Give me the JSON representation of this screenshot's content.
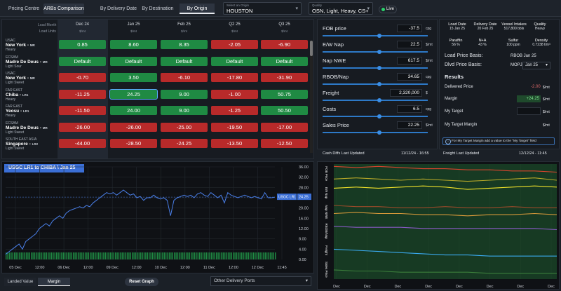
{
  "nav": {
    "tabs": [
      "Pricing Centre",
      "ARBs Comparison",
      "By Delivery Date",
      "By Destination",
      "By Origin"
    ]
  },
  "origin": {
    "label": "Select an Origin",
    "value": "HOUSTON"
  },
  "quality": {
    "label": "Quality",
    "value": "OSN, Light, Heavy, CS+"
  },
  "live": "Live",
  "grid": {
    "load_month_label": "Load Month",
    "load_units_label": "Load Units",
    "columns": [
      {
        "label": "Dec 24",
        "unit": "$/mt"
      },
      {
        "label": "Jan 25",
        "unit": "$/mt"
      },
      {
        "label": "Feb 25",
        "unit": "$/mt"
      },
      {
        "label": "Q2 25",
        "unit": "$/mt"
      },
      {
        "label": "Q3 25",
        "unit": "$/mt"
      }
    ],
    "rows": [
      {
        "region": "USAC",
        "name": "New York",
        "code": "MR",
        "grade": "Heavy",
        "values": [
          "0.85",
          "8.60",
          "8.35",
          "-2.05",
          "-6.90"
        ]
      },
      {
        "region": "ECSAM",
        "name": "Madre De Deus",
        "code": "MR",
        "grade": "Light Sour",
        "values": [
          "Default",
          "Default",
          "Default",
          "Default",
          "Default"
        ]
      },
      {
        "region": "USAC",
        "name": "New York",
        "code": "MR",
        "grade": "Light Sweet",
        "values": [
          "-0.70",
          "3.50",
          "-6.10",
          "-17.80",
          "-31.90"
        ]
      },
      {
        "region": "FAR EAST",
        "name": "Chiba",
        "code": "LR1",
        "grade": "Heavy",
        "values": [
          "-11.25",
          "24.25",
          "9.00",
          "-1.00",
          "50.75"
        ]
      },
      {
        "region": "FAR EAST",
        "name": "Yeosu",
        "code": "LR1",
        "grade": "Heavy",
        "values": [
          "-11.50",
          "24.00",
          "9.00",
          "-1.25",
          "50.50"
        ]
      },
      {
        "region": "ECSAM",
        "name": "Madre De Deus",
        "code": "MR",
        "grade": "Light Sweet",
        "values": [
          "-26.00",
          "-26.00",
          "-25.00",
          "-19.50",
          "-17.00"
        ]
      },
      {
        "region": "SOUTH EAST ASIA",
        "name": "Singapore",
        "code": "LR2",
        "grade": "Light Sweet",
        "values": [
          "-44.00",
          "-28.50",
          "-24.25",
          "-13.50",
          "-12.50"
        ]
      }
    ]
  },
  "sliders": [
    {
      "label": "FOB price",
      "value": "-37.5",
      "unit": "cpg"
    },
    {
      "label": "E/W Nap",
      "value": "22.5",
      "unit": "$/mt"
    },
    {
      "label": "Nap NWE",
      "value": "617.5",
      "unit": "$/mt"
    },
    {
      "label": "RBOB/Nap",
      "value": "34.65",
      "unit": "cpg"
    },
    {
      "label": "Freight",
      "value": "2,320,000",
      "unit": "$"
    },
    {
      "label": "Costs",
      "value": "6.5",
      "unit": "cpg"
    },
    {
      "label": "Sales Price",
      "value": "22.25",
      "unit": "$/mt"
    }
  ],
  "info": {
    "load_date_label": "Load Date",
    "load_date": "15 Jan 25",
    "delivery_date_label": "Delivery Date",
    "delivery_date": "20 Feb 25",
    "vessel_label": "Vessel Intakes",
    "vessel": "517,800 bbls",
    "quality_label": "Quality",
    "quality": "Heavy",
    "paraffin_label": "Paraffin",
    "paraffin": "56 %",
    "na_label": "N+A",
    "na": "43 %",
    "sulfur_label": "Sulfur",
    "sulfur": "100 ppm",
    "density_label": "Density",
    "density": "0.7238 t/m³",
    "load_basis_label": "Load Price Basis:",
    "load_basis": "RBOB Jan 25",
    "dlvd_basis_label": "Dlvd Price Basis:",
    "dlvd_basis_a": "MOPJ",
    "dlvd_basis_b": "Jan 25",
    "results_label": "Results",
    "delivered_label": "Delivered Price",
    "delivered_value": "-2.00",
    "delivered_unit": "$/mt",
    "margin_label": "Margin",
    "margin_value": "+24.25",
    "margin_unit": "$/mt",
    "target_label": "My Target",
    "target_unit": "$/mt",
    "target_margin_label": "My Target Margin",
    "target_margin_unit": "$/mt",
    "hint": "For My Target Margin add a value to the \"My Target\" field",
    "cash_label": "Cash Diffs Last Updated",
    "cash_time": "11/12/24 - 16:55",
    "freight_label": "Freight Last Updated",
    "freight_time": "12/12/24 - 11:45"
  },
  "chart_data": [
    {
      "type": "line",
      "title": "USGC LR1 to CHIBA \\ Jan 25",
      "x_ticks": [
        "05 Dec",
        "12:00",
        "06 Dec",
        "12:00",
        "09 Dec",
        "12:00",
        "10 Dec",
        "12:00",
        "11 Dec",
        "12:00",
        "12 Dec",
        "11:45"
      ],
      "y_ticks": [
        "36.00",
        "32.00",
        "28.00",
        "24.00",
        "20.00",
        "16.00",
        "12.00",
        "8.00",
        "4.00",
        "0.00"
      ],
      "ylim": [
        0,
        36
      ],
      "series": [
        {
          "name": "USGC LR1",
          "last": "24.25",
          "values": [
            2,
            3,
            4,
            5,
            6,
            4,
            7,
            8,
            9,
            10,
            12,
            13,
            14,
            13,
            15,
            16,
            17,
            16,
            18,
            19,
            19.5,
            20,
            20.5,
            20,
            21,
            20.5,
            22,
            23,
            24,
            25,
            26,
            25.5,
            26,
            25,
            26,
            27,
            26,
            25,
            25.5,
            24,
            24.5,
            23,
            24,
            24,
            25,
            24,
            23.5,
            24,
            23,
            17,
            23,
            24,
            24.5,
            25,
            24.5,
            25,
            24,
            25.5,
            26,
            25,
            24.5,
            26,
            25,
            24,
            25,
            22,
            26,
            25,
            24.5,
            24,
            24.5,
            25,
            24.5,
            24,
            24.5,
            24,
            23.5,
            26,
            24,
            24,
            24.25
          ]
        }
      ]
    },
    {
      "type": "line",
      "panel_labels": [
        "FOB Price",
        "EW Nap",
        "Nap NWE",
        "RBOB/Nap",
        "Freight",
        "Sales Price"
      ],
      "x_ticks": [
        "Dec",
        "Dec",
        "Dec",
        "Dec",
        "Dec",
        "Dec",
        "Dec",
        "Dec"
      ],
      "series": [
        {
          "color": "#d9442e",
          "values": [
            98,
            97,
            98,
            97,
            96,
            96,
            95,
            95,
            94,
            94,
            93
          ]
        },
        {
          "color": "#b8a828",
          "values": [
            87,
            88,
            87,
            86,
            87,
            86,
            85,
            86,
            87,
            88,
            86
          ]
        },
        {
          "color": "#f2e32a",
          "values": [
            79,
            80,
            79,
            80,
            81,
            80,
            78,
            79,
            80,
            81,
            80
          ]
        },
        {
          "color": "#9a4a2a",
          "values": [
            64,
            63,
            63,
            62,
            62,
            63,
            62,
            62,
            63,
            62,
            62
          ]
        },
        {
          "color": "#d99a3a",
          "values": [
            57,
            58,
            57,
            57,
            56,
            56,
            55,
            56,
            56,
            57,
            56
          ]
        },
        {
          "color": "#8a5ac8",
          "values": [
            46,
            45,
            45,
            45,
            44,
            44,
            44,
            44,
            44,
            44,
            43
          ]
        },
        {
          "color": "#3aaaf0",
          "values": [
            26,
            25,
            24,
            23,
            22,
            21,
            21,
            20,
            20,
            20,
            20
          ]
        },
        {
          "color": "#3b7d3b",
          "values": [
            8,
            7,
            7,
            6,
            6,
            6,
            6,
            5,
            5,
            5,
            5
          ]
        }
      ]
    }
  ],
  "chart_tabs": [
    "Landed Value",
    "Margin"
  ],
  "reset_label": "Reset Graph",
  "ports_label": "Other Delivery Ports"
}
